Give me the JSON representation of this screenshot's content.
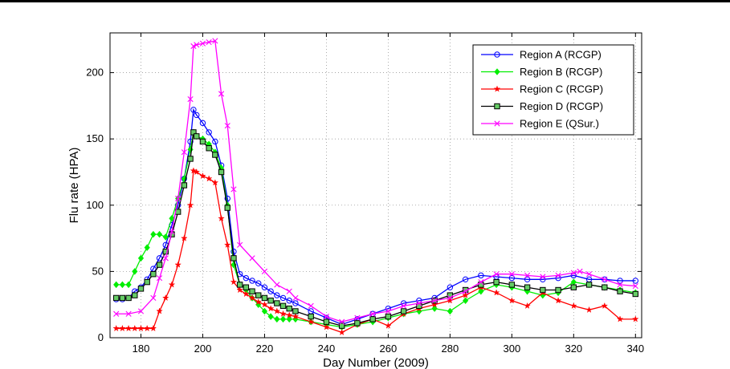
{
  "chart_data": {
    "type": "line",
    "xlabel": "Day Number (2009)",
    "ylabel": "Flu rate (HPA)",
    "xlim": [
      170,
      342
    ],
    "ylim": [
      0,
      230
    ],
    "xticks": [
      180,
      200,
      220,
      240,
      260,
      280,
      300,
      320,
      340
    ],
    "yticks": [
      0,
      50,
      100,
      150,
      200
    ],
    "grid": true,
    "legend_position": "top-right",
    "series": [
      {
        "name": "Region A (RCGP)",
        "color": "#0000ff",
        "marker": "circle",
        "x": [
          172,
          174,
          176,
          178,
          180,
          182,
          184,
          186,
          188,
          190,
          192,
          194,
          196,
          197,
          198,
          200,
          202,
          204,
          206,
          208,
          210,
          212,
          214,
          216,
          218,
          220,
          222,
          224,
          226,
          228,
          230,
          235,
          240,
          245,
          250,
          255,
          260,
          265,
          270,
          275,
          280,
          285,
          290,
          295,
          300,
          305,
          310,
          315,
          320,
          325,
          330,
          335,
          340
        ],
        "y": [
          29,
          29,
          30,
          35,
          38,
          44,
          52,
          60,
          70,
          85,
          100,
          120,
          148,
          172,
          168,
          162,
          155,
          148,
          130,
          105,
          65,
          48,
          45,
          43,
          41,
          38,
          35,
          32,
          30,
          28,
          26,
          20,
          15,
          10,
          14,
          18,
          22,
          26,
          28,
          30,
          38,
          44,
          47,
          46,
          45,
          44,
          44,
          45,
          47,
          44,
          44,
          43,
          43
        ]
      },
      {
        "name": "Region B (RCGP)",
        "color": "#00ee00",
        "marker": "diamond",
        "x": [
          172,
          174,
          176,
          178,
          180,
          182,
          184,
          186,
          188,
          190,
          192,
          194,
          196,
          197,
          198,
          200,
          202,
          204,
          206,
          208,
          210,
          212,
          214,
          216,
          218,
          220,
          222,
          224,
          226,
          228,
          230,
          235,
          240,
          245,
          250,
          255,
          260,
          265,
          270,
          275,
          280,
          285,
          290,
          295,
          300,
          305,
          310,
          315,
          320,
          325,
          330,
          335,
          340
        ],
        "y": [
          40,
          40,
          40,
          50,
          60,
          68,
          78,
          78,
          76,
          90,
          105,
          120,
          142,
          155,
          152,
          150,
          146,
          140,
          128,
          100,
          55,
          40,
          36,
          30,
          25,
          20,
          16,
          14,
          14,
          14,
          14,
          12,
          10,
          8,
          10,
          12,
          15,
          18,
          20,
          22,
          20,
          28,
          35,
          40,
          38,
          35,
          32,
          34,
          42,
          40,
          38,
          36,
          34
        ]
      },
      {
        "name": "Region C (RCGP)",
        "color": "#ff0000",
        "marker": "star",
        "x": [
          172,
          174,
          176,
          178,
          180,
          182,
          184,
          186,
          188,
          190,
          192,
          194,
          196,
          197,
          198,
          200,
          202,
          204,
          206,
          208,
          210,
          212,
          214,
          216,
          218,
          220,
          222,
          224,
          226,
          228,
          230,
          235,
          240,
          245,
          250,
          255,
          260,
          265,
          270,
          275,
          280,
          285,
          290,
          295,
          300,
          305,
          310,
          315,
          320,
          325,
          330,
          335,
          340
        ],
        "y": [
          7,
          7,
          7,
          7,
          7,
          7,
          7,
          20,
          30,
          40,
          55,
          75,
          100,
          126,
          125,
          122,
          120,
          117,
          90,
          70,
          42,
          36,
          33,
          30,
          27,
          25,
          22,
          20,
          18,
          17,
          16,
          12,
          8,
          4,
          10,
          14,
          9,
          18,
          22,
          25,
          28,
          32,
          38,
          34,
          28,
          24,
          34,
          28,
          24,
          21,
          24,
          14,
          14
        ]
      },
      {
        "name": "Region D (RCGP)",
        "color": "#000000",
        "marker": "square",
        "fill": "#66cc66",
        "x": [
          172,
          174,
          176,
          178,
          180,
          182,
          184,
          186,
          188,
          190,
          192,
          194,
          196,
          197,
          198,
          200,
          202,
          204,
          206,
          208,
          210,
          212,
          214,
          216,
          218,
          220,
          222,
          224,
          226,
          228,
          230,
          235,
          240,
          245,
          250,
          255,
          260,
          265,
          270,
          275,
          280,
          285,
          290,
          295,
          300,
          305,
          310,
          315,
          320,
          325,
          330,
          335,
          340
        ],
        "y": [
          30,
          30,
          30,
          32,
          37,
          42,
          48,
          55,
          65,
          78,
          95,
          115,
          135,
          155,
          152,
          148,
          143,
          138,
          125,
          98,
          60,
          40,
          38,
          35,
          32,
          30,
          28,
          26,
          24,
          22,
          20,
          16,
          12,
          9,
          11,
          14,
          16,
          20,
          24,
          28,
          32,
          36,
          40,
          42,
          40,
          38,
          36,
          36,
          38,
          40,
          38,
          35,
          33
        ]
      },
      {
        "name": "Region E (QSur.)",
        "color": "#ff00ff",
        "marker": "x",
        "x": [
          172,
          176,
          180,
          184,
          186,
          188,
          190,
          192,
          194,
          196,
          197,
          198,
          200,
          202,
          204,
          206,
          208,
          210,
          212,
          216,
          220,
          224,
          228,
          230,
          235,
          240,
          245,
          250,
          255,
          260,
          265,
          270,
          275,
          280,
          285,
          290,
          295,
          300,
          305,
          310,
          315,
          320,
          322,
          325,
          330,
          335,
          340
        ],
        "y": [
          18,
          18,
          20,
          30,
          45,
          60,
          80,
          105,
          140,
          180,
          220,
          221,
          222,
          223,
          224,
          184,
          160,
          112,
          70,
          60,
          50,
          40,
          35,
          30,
          24,
          16,
          12,
          15,
          18,
          20,
          24,
          26,
          28,
          30,
          35,
          42,
          48,
          48,
          47,
          46,
          47,
          49,
          50,
          48,
          44,
          40,
          39
        ]
      }
    ]
  }
}
